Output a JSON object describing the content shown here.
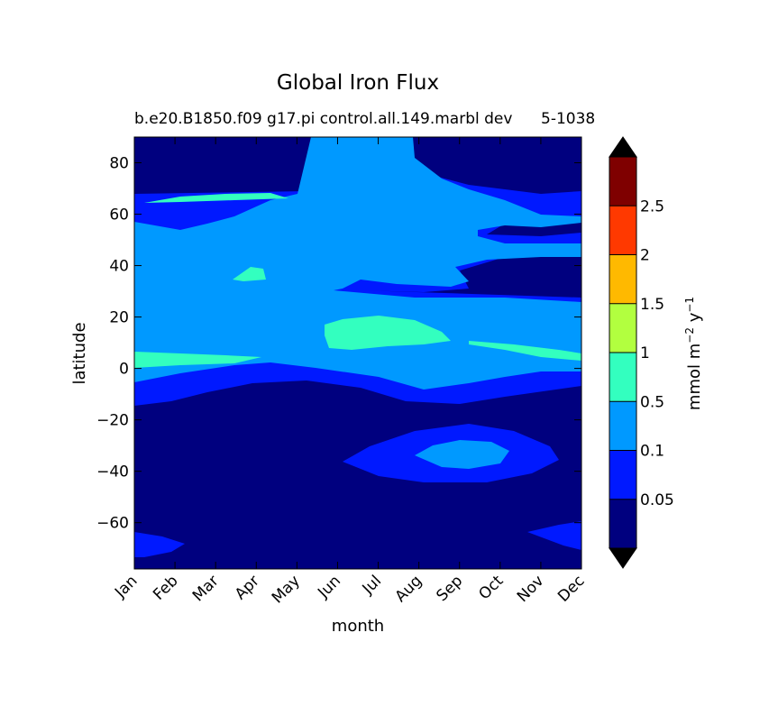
{
  "chart_data": {
    "type": "heatmap",
    "subtype": "filled-contour",
    "title": "Global Iron Flux",
    "subtitle": "b.e20.B1850.f09 g17.pi control.all.149.marbl dev",
    "subtitle_right": "5-1038",
    "xlabel": "month",
    "ylabel": "latitude",
    "x_categories": [
      "Jan",
      "Feb",
      "Mar",
      "Apr",
      "May",
      "Jun",
      "Jul",
      "Aug",
      "Sep",
      "Oct",
      "Nov",
      "Dec"
    ],
    "ylim": [
      -78,
      90
    ],
    "y_ticks": [
      -60,
      -40,
      -20,
      0,
      20,
      40,
      60,
      80
    ],
    "colorbar": {
      "label": "mmol m⁻² y⁻¹",
      "label_base": "mmol m",
      "label_exp1": "−2",
      "label_mid": " y",
      "label_exp2": "−1",
      "levels": [
        "0.05",
        "0.1",
        "0.5",
        "1",
        "1.5",
        "2",
        "2.5"
      ],
      "colors": [
        "#00007f",
        "#0019ff",
        "#0099ff",
        "#33ffbf",
        "#b2ff3f",
        "#ffb900",
        "#ff3900",
        "#7f0000"
      ],
      "under_color": "#000000",
      "over_color": "#000000",
      "extend": "both"
    },
    "regions": [
      {
        "band": "0.1 - 0.5",
        "description": "broad tropical / mid-latitude band from about -5 to 65 latitude, extending to 90N in June-July"
      },
      {
        "band": "0.05 - 0.1",
        "description": "surrounding band from about -15 to 70 latitude and a Southern Ocean patch near -40 from August to November"
      },
      {
        "band": "0.5 - 1",
        "description": "small patches near 0 to 5N (Jan-Apr and Oct-Dec), near 10-20N (Jun-Aug), near 35N in April and near 63N in Feb-May"
      },
      {
        "band": "0 - 0.05",
        "description": "high northern latitudes (except summer) and the Southern Hemisphere south of about -15"
      }
    ]
  }
}
